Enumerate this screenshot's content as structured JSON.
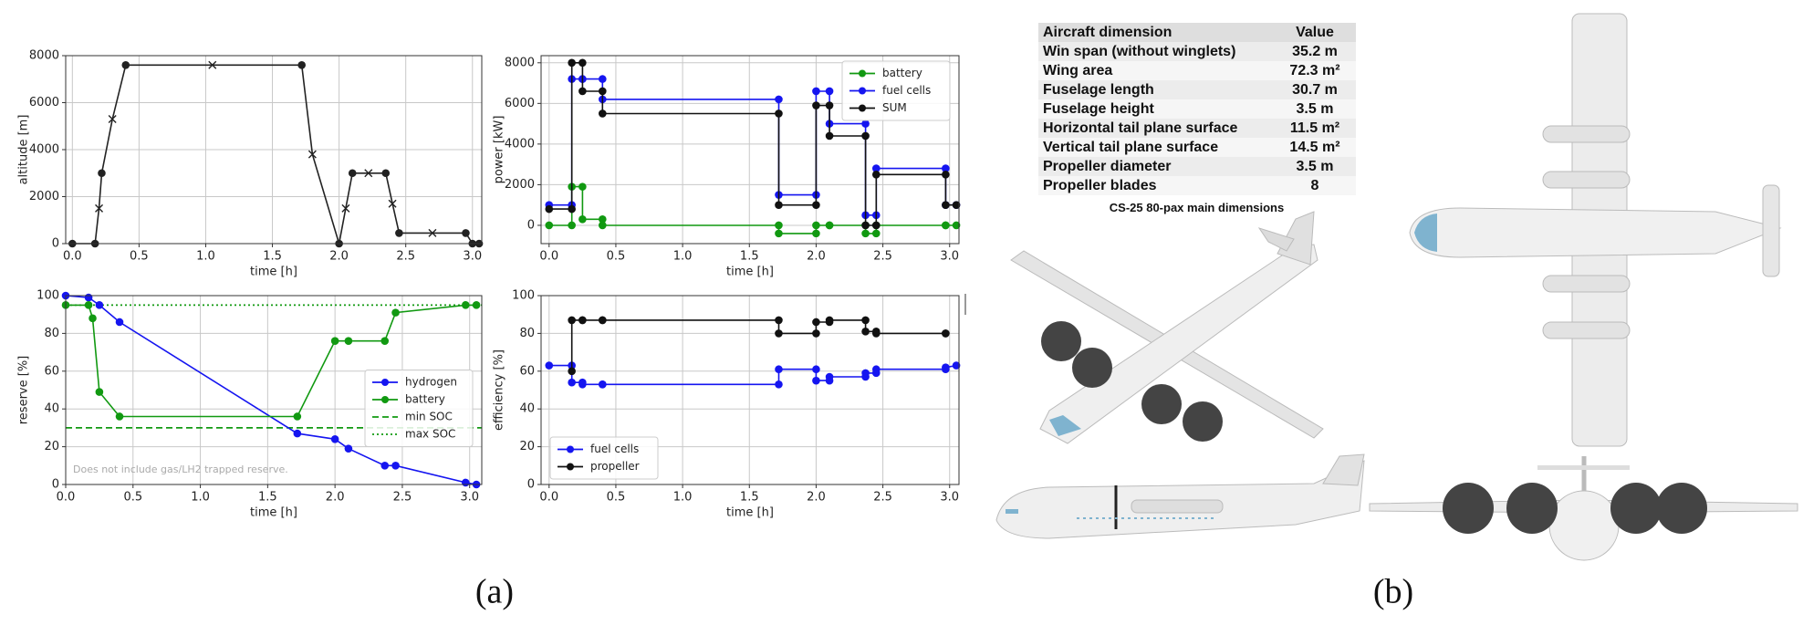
{
  "chart_data": [
    {
      "type": "line",
      "xlabel": "time [h]",
      "ylabel": "altitude [m]",
      "xlim": [
        -0.05,
        3.07
      ],
      "ylim": [
        0,
        8000
      ],
      "xticks": [
        {
          "value": 0,
          "label": "0.0"
        },
        0.5,
        {
          "value": 1,
          "label": "1.0"
        },
        1.5,
        {
          "value": 2,
          "label": "2.0"
        },
        2.5,
        {
          "value": 3,
          "label": "3.0"
        }
      ],
      "yticks": [
        0,
        2000,
        4000,
        6000,
        8000
      ],
      "grid": true,
      "series": [
        {
          "color": "#222222",
          "x": [
            0,
            0.17,
            0.2,
            0.22,
            0.3,
            0.4,
            1.05,
            1.72,
            1.8,
            2.0,
            2.05,
            2.1,
            2.22,
            2.35,
            2.4,
            2.45,
            2.7,
            2.95,
            3.0,
            3.05
          ],
          "values": [
            0,
            0,
            1500,
            3000,
            5300,
            7600,
            7600,
            7600,
            3800,
            0,
            1500,
            3000,
            3000,
            3000,
            1700,
            450,
            450,
            450,
            0,
            0
          ],
          "markers": [
            "o",
            "o",
            "x",
            "o",
            "x",
            "o",
            "x",
            "o",
            "x",
            "o",
            "x",
            "o",
            "x",
            "o",
            "x",
            "o",
            "x",
            "o",
            "o",
            "o"
          ]
        }
      ]
    },
    {
      "type": "line",
      "xlabel": "time [h]",
      "ylabel": "power [kW]",
      "xlim": [
        -0.06,
        3.07
      ],
      "ylim": [
        -900,
        8350
      ],
      "xticks": [
        {
          "value": 0,
          "label": "0.0"
        },
        0.5,
        {
          "value": 1,
          "label": "1.0"
        },
        1.5,
        {
          "value": 2,
          "label": "2.0"
        },
        2.5,
        {
          "value": 3,
          "label": "3.0"
        }
      ],
      "yticks": [
        0,
        2000,
        4000,
        6000,
        8000
      ],
      "grid": true,
      "legend": "upper right",
      "x": [
        0,
        0.17,
        0.17,
        0.25,
        0.25,
        0.4,
        0.4,
        1.72,
        1.72,
        2.0,
        2.0,
        2.1,
        2.1,
        2.37,
        2.37,
        2.45,
        2.45,
        2.97,
        2.97,
        3.05
      ],
      "series": [
        {
          "name": "battery",
          "color": "#119911",
          "values": [
            0,
            0,
            1900,
            1900,
            300,
            300,
            0,
            0,
            -400,
            -400,
            0,
            0,
            0,
            0,
            -400,
            -400,
            0,
            0,
            0,
            0
          ]
        },
        {
          "name": "fuel cells",
          "color": "#1515f0",
          "values": [
            1000,
            1000,
            7200,
            7200,
            7200,
            7200,
            6200,
            6200,
            1500,
            1500,
            6600,
            6600,
            5000,
            5000,
            500,
            500,
            2800,
            2800,
            1000,
            1000
          ]
        },
        {
          "name": "SUM",
          "color": "#111111",
          "values": [
            800,
            800,
            8000,
            8000,
            6600,
            6600,
            5500,
            5500,
            1000,
            1000,
            5900,
            5900,
            4400,
            4400,
            0,
            0,
            2500,
            2500,
            1000,
            1000
          ]
        }
      ]
    },
    {
      "type": "line",
      "xlabel": "time [h]",
      "ylabel": "reserve [%]",
      "xlim": [
        0,
        3.09
      ],
      "ylim": [
        0,
        100
      ],
      "xticks": [
        {
          "value": 0,
          "label": "0.0"
        },
        0.5,
        {
          "value": 1,
          "label": "1.0"
        },
        1.5,
        {
          "value": 2,
          "label": "2.0"
        },
        2.5,
        {
          "value": 3,
          "label": "3.0"
        }
      ],
      "yticks": [
        0,
        20,
        40,
        60,
        80,
        100
      ],
      "grid": true,
      "legend": "center right",
      "annotation": "Does not include gas/LH2 trapped reserve.",
      "series": [
        {
          "name": "hydrogen",
          "color": "#1515f0",
          "x": [
            0,
            0.17,
            0.25,
            0.4,
            1.72,
            2.0,
            2.1,
            2.37,
            2.45,
            2.97,
            3.05
          ],
          "values": [
            100,
            99,
            95,
            86,
            27,
            24,
            19,
            10,
            10,
            1,
            0
          ]
        },
        {
          "name": "battery",
          "color": "#119911",
          "x": [
            0,
            0.17,
            0.2,
            0.25,
            0.4,
            1.72,
            2.0,
            2.1,
            2.37,
            2.45,
            2.97,
            3.05
          ],
          "values": [
            95,
            95,
            88,
            49,
            36,
            36,
            76,
            76,
            76,
            91,
            95,
            95
          ]
        }
      ],
      "hlines": [
        {
          "name": "min SOC",
          "value": 30,
          "color": "#119911",
          "style": "dashed"
        },
        {
          "name": "max SOC",
          "value": 95,
          "color": "#119911",
          "style": "dotted"
        }
      ]
    },
    {
      "type": "line",
      "xlabel": "time [h]",
      "ylabel": "efficiency [%]",
      "xlim": [
        -0.06,
        3.07
      ],
      "ylim": [
        0,
        100
      ],
      "xticks": [
        {
          "value": 0,
          "label": "0.0"
        },
        0.5,
        {
          "value": 1,
          "label": "1.0"
        },
        1.5,
        {
          "value": 2,
          "label": "2.0"
        },
        2.5,
        {
          "value": 3,
          "label": "3.0"
        }
      ],
      "yticks": [
        0,
        20,
        40,
        60,
        80,
        100
      ],
      "grid": true,
      "legend": "lower left",
      "x": [
        0,
        0.17,
        0.17,
        0.25,
        0.25,
        0.4,
        0.4,
        1.72,
        1.72,
        2.0,
        2.0,
        2.1,
        2.1,
        2.37,
        2.37,
        2.45,
        2.45,
        2.97,
        2.97,
        3.05
      ],
      "series": [
        {
          "name": "fuel cells",
          "color": "#1515f0",
          "values": [
            63,
            63,
            54,
            54,
            53,
            53,
            53,
            53,
            61,
            61,
            55,
            55,
            57,
            57,
            59,
            59,
            61,
            61,
            62,
            63
          ]
        },
        {
          "name": "propeller",
          "color": "#111111",
          "values": [
            null,
            60,
            87,
            87,
            87,
            87,
            87,
            87,
            80,
            80,
            86,
            86,
            87,
            87,
            81,
            81,
            80,
            80,
            80,
            null
          ]
        }
      ]
    }
  ],
  "table": {
    "header": [
      "Aircraft dimension",
      "Value"
    ],
    "rows": [
      [
        "Win span (without winglets)",
        "35.2 m"
      ],
      [
        "Wing area",
        "72.3 m²"
      ],
      [
        "Fuselage length",
        "30.7 m"
      ],
      [
        "Fuselage height",
        "3.5 m"
      ],
      [
        "Horizontal tail plane surface",
        "11.5 m²"
      ],
      [
        "Vertical tail plane surface",
        "14.5 m²"
      ],
      [
        "Propeller diameter",
        "3.5 m"
      ],
      [
        "Propeller blades",
        "8"
      ]
    ],
    "caption": "CS-25 80-pax main dimensions"
  },
  "panel_labels": [
    "(a)",
    "(b)"
  ]
}
